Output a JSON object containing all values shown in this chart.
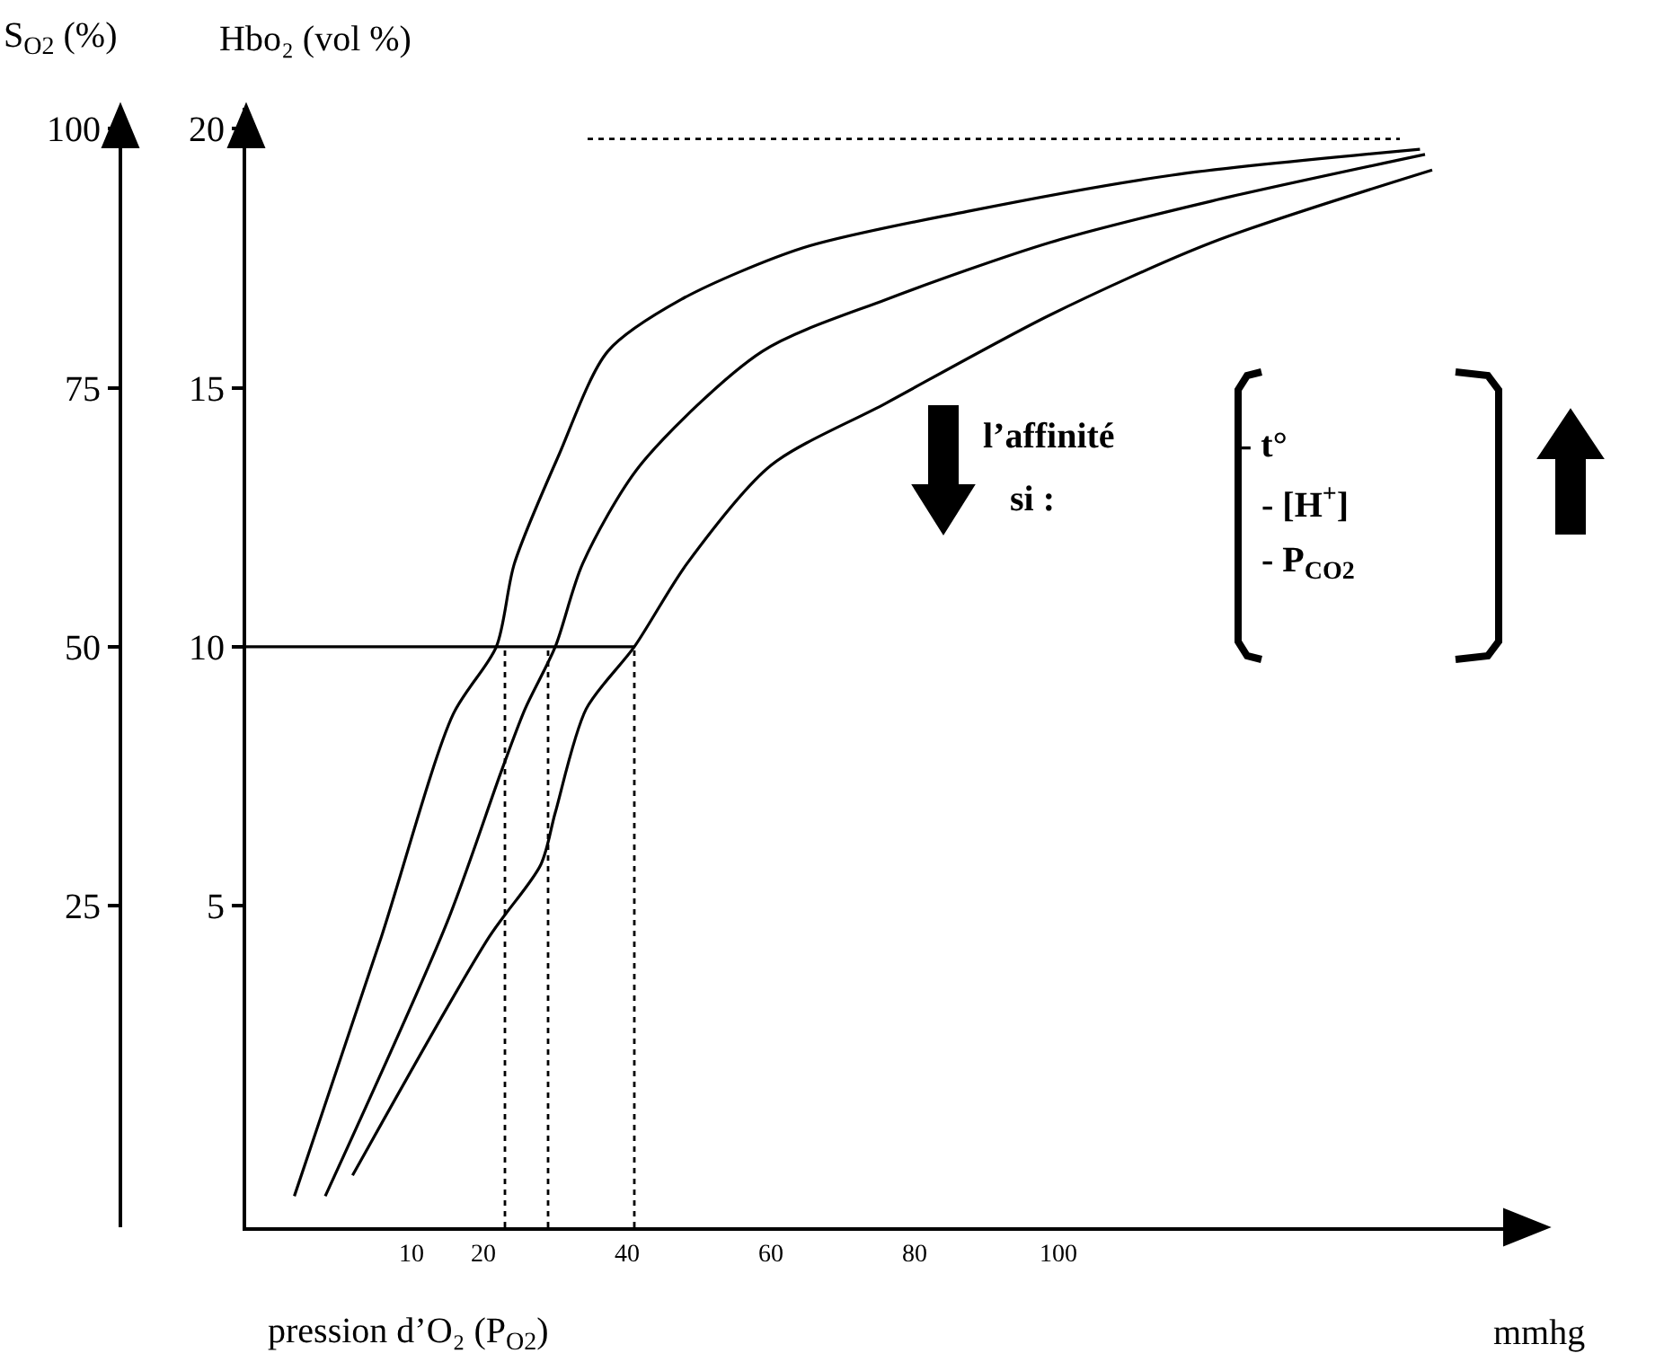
{
  "chart_data": {
    "type": "line",
    "ylabel": "Hbo₂ (vol %)",
    "y2label": "S$_{O2}$ (%)",
    "xlabel": "pression d’O₂ (P$_{O2}$)",
    "xlim": [
      -13,
      164
    ],
    "xticks": [
      10,
      20,
      40,
      60,
      80,
      100
    ],
    "ylim": [
      -1.2,
      20.4
    ],
    "yticks": [
      5,
      10,
      15,
      20
    ],
    "y2lim": [
      -6,
      102
    ],
    "y2ticks": [
      25,
      50,
      75,
      100
    ],
    "marker": "none",
    "series": [
      {
        "color": "#000000",
        "line_style": "solid",
        "x": [
          -6.3,
          5.8,
          15.8,
          21.8,
          24.3,
          30.5,
          37.3,
          47.5,
          64.5,
          87.3,
          115.8,
          150.3
        ],
        "values": [
          -0.6,
          4.4,
          8.7,
          10.0,
          11.6,
          13.7,
          15.7,
          16.7,
          17.7,
          18.4,
          19.1,
          19.6
        ]
      },
      {
        "color": "#000000",
        "line_style": "solid",
        "x": [
          -2,
          15,
          22.5,
          25.8,
          30,
          33.8,
          41.8,
          58.8,
          76,
          98.8,
          121.3,
          151
        ],
        "values": [
          -0.6,
          4.7,
          7.6,
          8.8,
          10.0,
          11.6,
          13.5,
          15.7,
          16.7,
          17.8,
          18.6,
          19.5
        ]
      },
      {
        "color": "#000000",
        "line_style": "solid",
        "x": [
          1.8,
          20.8,
          28,
          30,
          34.3,
          41,
          48.3,
          60,
          76,
          98.8,
          121.3,
          152
        ],
        "values": [
          -0.2,
          4.4,
          5.8,
          6.8,
          8.8,
          10.0,
          11.6,
          13.5,
          14.7,
          16.4,
          17.8,
          19.2
        ]
      },
      {
        "color": "#000000",
        "line_style": "solid",
        "x": [
          -13,
          41
        ],
        "values": [
          10,
          10
        ]
      },
      {
        "color": "#000000",
        "line_style": "dotted",
        "x": [
          23,
          23
        ],
        "values": [
          -1.2,
          10
        ]
      },
      {
        "color": "#000000",
        "line_style": "dotted",
        "x": [
          29,
          29
        ],
        "values": [
          -1.2,
          10
        ]
      },
      {
        "color": "#000000",
        "line_style": "dotted",
        "x": [
          41,
          41
        ],
        "values": [
          -1.2,
          10
        ]
      },
      {
        "color": "#000000",
        "line_style": "dotted",
        "x": [
          34.5,
          147.5
        ],
        "values": [
          19.8,
          19.8
        ]
      }
    ],
    "annotations": [
      "l’affinité",
      "si :",
      "- t°",
      "- [H$^{+}$]",
      "- P$_{CO2}$",
      "mmhg"
    ]
  }
}
